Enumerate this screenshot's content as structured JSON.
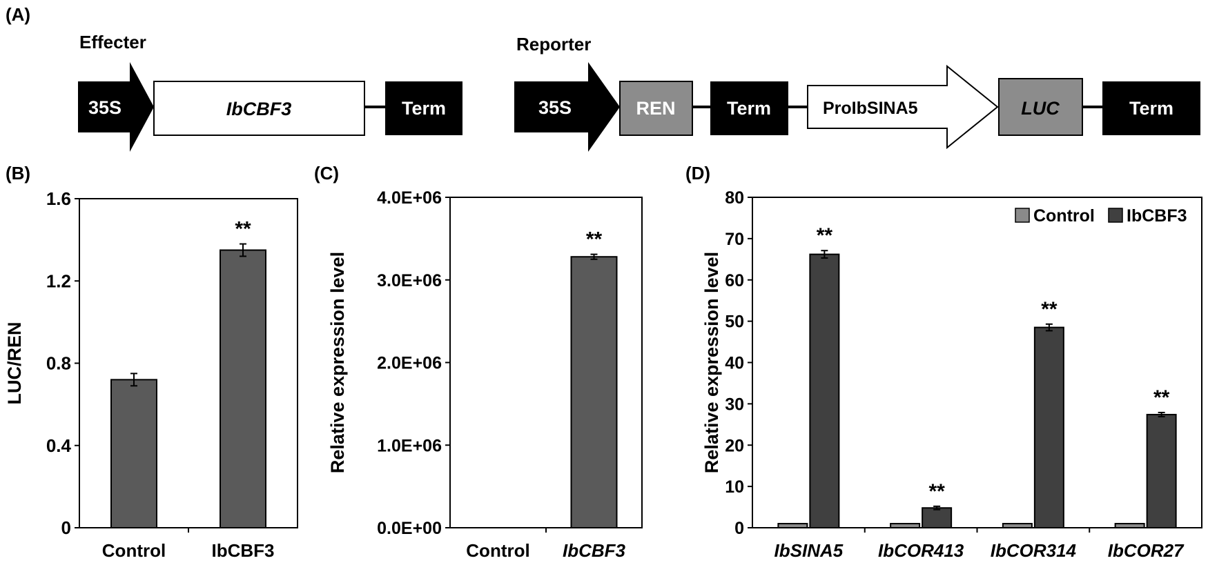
{
  "panel_labels": {
    "a": "(A)",
    "b": "(B)",
    "c": "(C)",
    "d": "(D)"
  },
  "constructs": {
    "effecter": {
      "title": "Effecter",
      "promoter": "35S",
      "gene": "IbCBF3",
      "terminator": "Term"
    },
    "reporter": {
      "title": "Reporter",
      "promoter": "35S",
      "ren": "REN",
      "term1": "Term",
      "pro": "ProIbSINA5",
      "luc": "LUC",
      "term2": "Term"
    }
  },
  "colors": {
    "bar": "#5a5a5a",
    "control_bar": "#8a8a8a",
    "cbf3_bar": "#404040",
    "ren_box": "#8c8c8c",
    "luc_box": "#8c8c8c",
    "black": "#000000"
  },
  "chart_data": [
    {
      "panel": "B",
      "type": "bar",
      "ylabel": "LUC/REN",
      "categories": [
        "Control",
        "IbCBF3"
      ],
      "values": [
        0.72,
        1.35
      ],
      "errors": [
        0.03,
        0.03
      ],
      "annotations": [
        "",
        "**"
      ],
      "ylim": [
        0,
        1.6
      ],
      "yticks": [
        0,
        0.4,
        0.8,
        1.2,
        1.6
      ],
      "ytick_labels": [
        "0",
        "0.4",
        "0.8",
        "1.2",
        "1.6"
      ]
    },
    {
      "panel": "C",
      "type": "bar",
      "ylabel": "Relative expression level",
      "categories": [
        "Control",
        "IbCBF3"
      ],
      "values": [
        1,
        3280000
      ],
      "errors": [
        0,
        30000
      ],
      "annotations": [
        "",
        "**"
      ],
      "ylim": [
        0,
        4000000
      ],
      "yticks": [
        0,
        1000000,
        2000000,
        3000000,
        4000000
      ],
      "ytick_labels": [
        "0.0E+00",
        "1.0E+06",
        "2.0E+06",
        "3.0E+06",
        "4.0E+06"
      ]
    },
    {
      "panel": "D",
      "type": "bar",
      "ylabel": "Relative expression level",
      "categories": [
        "IbSINA5",
        "IbCOR413",
        "IbCOR314",
        "IbCOR27"
      ],
      "series": [
        {
          "name": "Control",
          "values": [
            1,
            1,
            1,
            1
          ],
          "errors": [
            0,
            0,
            0,
            0
          ]
        },
        {
          "name": "IbCBF3",
          "values": [
            66.2,
            4.8,
            48.5,
            27.4
          ],
          "errors": [
            0.9,
            0.4,
            0.8,
            0.5
          ]
        }
      ],
      "annotations": [
        "**",
        "**",
        "**",
        "**"
      ],
      "ylim": [
        0,
        80
      ],
      "yticks": [
        0,
        10,
        20,
        30,
        40,
        50,
        60,
        70,
        80
      ],
      "ytick_labels": [
        "0",
        "10",
        "20",
        "30",
        "40",
        "50",
        "60",
        "70",
        "80"
      ],
      "legend_position": "top-right"
    }
  ]
}
